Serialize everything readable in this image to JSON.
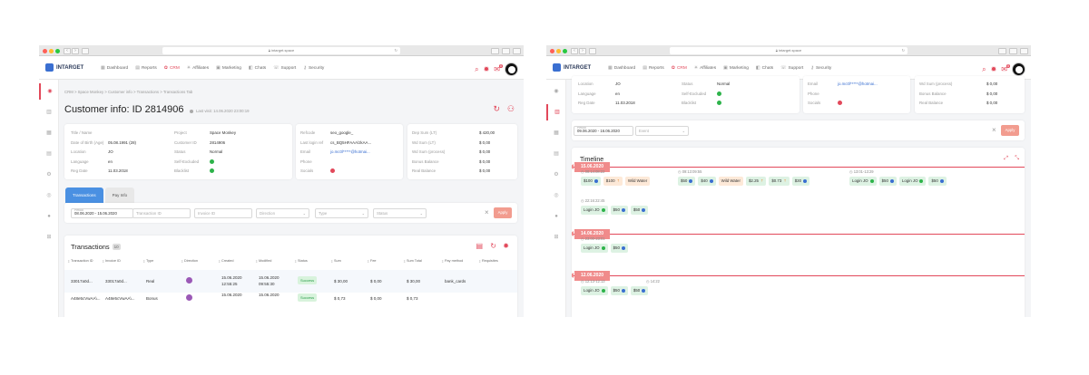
{
  "browser": {
    "url": "intarget.space"
  },
  "app": {
    "logo": "INTARGET"
  },
  "nav": [
    {
      "label": "Dashboard",
      "icon": "dashboard-icon",
      "glyph": "▦"
    },
    {
      "label": "Reports",
      "icon": "reports-icon",
      "glyph": "▤"
    },
    {
      "label": "CRM",
      "icon": "crm-icon",
      "glyph": "✿",
      "active": true
    },
    {
      "label": "Affiliates",
      "icon": "affiliates-icon",
      "glyph": "✳"
    },
    {
      "label": "Marketing",
      "icon": "marketing-icon",
      "glyph": "▣"
    },
    {
      "label": "Chats",
      "icon": "chats-icon",
      "glyph": "◧"
    },
    {
      "label": "Support",
      "icon": "support-icon",
      "glyph": "☏"
    },
    {
      "label": "Security",
      "icon": "security-icon",
      "glyph": "⚷"
    }
  ],
  "notifications": {
    "count": "8"
  },
  "left": {
    "breadcrumb": "CRM > Space Monkey > Customer info > Transactions > Transactions Tab",
    "title": "Customer info: ID 2814906",
    "last_visit": "Last visit: 14.06.2020 23:00:19",
    "info_col1": [
      {
        "k": "Title / Name",
        "v": ""
      },
      {
        "k": "Date of Birth (Age)",
        "v": "05.08.1991 (28)"
      },
      {
        "k": "Location",
        "v": "JO"
      },
      {
        "k": "Language",
        "v": "en"
      },
      {
        "k": "Reg Date",
        "v": "11.03.2018"
      }
    ],
    "info_col2": [
      {
        "k": "Project",
        "v": "Space Monkey"
      },
      {
        "k": "Customer ID",
        "v": "2814906"
      },
      {
        "k": "Status",
        "v": "Normal"
      },
      {
        "k": "Self-Excluded",
        "v": ""
      },
      {
        "k": "Blacklist",
        "v": ""
      }
    ],
    "info_col3": [
      {
        "k": "Refcode",
        "v": "seo_google_"
      },
      {
        "k": "Last login ref",
        "v": "cs_BQ5HFAAA\\zkAA..."
      },
      {
        "k": "Email",
        "v": "jo.mc0l*****@hotmai..."
      },
      {
        "k": "Phone",
        "v": ""
      },
      {
        "k": "Socials",
        "v": ""
      }
    ],
    "info_col4": [
      {
        "k": "Dep Sum (LT)",
        "v": "$ 420,00"
      },
      {
        "k": "Wd Sum (LT)",
        "v": "$ 0,00"
      },
      {
        "k": "Wd Sum (process)",
        "v": "$ 0,00"
      },
      {
        "k": "Bonus Balance",
        "v": "$ 0,00"
      },
      {
        "k": "Real Balance",
        "v": "$ 0,00"
      }
    ],
    "tabs": [
      "Transactions",
      "Pay Info"
    ],
    "filters": {
      "period_caption": "Period",
      "period": "08.06.2020 - 15.06.2020",
      "transaction_id": "Transaction ID",
      "invoice_id": "Invoice ID",
      "direction": "Direction",
      "type": "Type",
      "status": "Status",
      "apply": "Apply"
    },
    "transactions": {
      "title": "Transactions",
      "count": "10",
      "headers": [
        "Transaction ID",
        "Invoice ID",
        "Type",
        "Direction",
        "Created",
        "Modified",
        "Status",
        "Sum",
        "Fee",
        "Sum Total",
        "Pay method",
        "Requisites"
      ],
      "rows": [
        {
          "tid": "33017a0d...",
          "iid": "33017a0d...",
          "type": "Real",
          "created": "15.06.2020 12:55:25",
          "created_date": "15.06.2020",
          "created_time": "12:55:25",
          "modified_date": "15.06.2020",
          "modified_time": "09:55:30",
          "status": "Success",
          "sum": "$ 30,00",
          "fee": "$ 0,00",
          "total": "$ 30,00",
          "method": "bank_cards"
        },
        {
          "tid": "A48e5cVwAA\\...",
          "iid": "A48e5cVwAA\\...",
          "type": "Bonus",
          "created_date": "15.06.2020",
          "created_time": "",
          "modified_date": "15.06.2020",
          "modified_time": "",
          "status": "Success",
          "sum": "$ 0,73",
          "fee": "$ 0,00",
          "total": "$ 0,73",
          "method": ""
        }
      ]
    }
  },
  "right": {
    "info_col1": [
      {
        "k": "Location",
        "v": "JO"
      },
      {
        "k": "Language",
        "v": "en"
      },
      {
        "k": "Reg Date",
        "v": "11.03.2018"
      }
    ],
    "info_col2": [
      {
        "k": "Status",
        "v": "Normal"
      },
      {
        "k": "Self-Excluded",
        "v": ""
      },
      {
        "k": "Blacklist",
        "v": ""
      }
    ],
    "info_col3": [
      {
        "k": "Email",
        "v": "jo.mc0l*****@hotmai..."
      },
      {
        "k": "Phone",
        "v": ""
      },
      {
        "k": "Socials",
        "v": ""
      }
    ],
    "info_col4": [
      {
        "k": "Wd Sum (process)",
        "v": "$ 0,00"
      },
      {
        "k": "Bonus Balance",
        "v": "$ 0,00"
      },
      {
        "k": "Real Balance",
        "v": "$ 0,00"
      }
    ],
    "filters": {
      "period_caption": "Period",
      "period": "09.06.2020 - 16.06.2020",
      "event": "Event",
      "apply": "Apply"
    },
    "timeline": {
      "title": "Timeline",
      "days": [
        {
          "date": "15.06.2020",
          "groups": [
            {
              "time": "08:14:08:22",
              "chips": [
                {
                  "t": "$100",
                  "c": "g",
                  "i": "co"
                },
                {
                  "t": "$100",
                  "c": "o",
                  "i": "cy"
                },
                {
                  "t": "Wild Water",
                  "c": "o",
                  "i": ""
                }
              ]
            },
            {
              "time": "09:13:09:55",
              "chips": [
                {
                  "t": "$50",
                  "c": "g",
                  "i": "co"
                },
                {
                  "t": "$40",
                  "c": "g",
                  "i": "co"
                },
                {
                  "t": "Wild Water",
                  "c": "o",
                  "i": ""
                },
                {
                  "t": "$2.25",
                  "c": "g",
                  "i": "cy"
                },
                {
                  "t": "$0.73",
                  "c": "g",
                  "i": "cy"
                },
                {
                  "t": "$30",
                  "c": "g",
                  "i": "co"
                }
              ]
            },
            {
              "time": "13:01-13:29",
              "chips": [
                {
                  "t": "Login JO",
                  "c": "g",
                  "i": "cg"
                },
                {
                  "t": "$50",
                  "c": "g",
                  "i": "co"
                },
                {
                  "t": "Login JO",
                  "c": "g",
                  "i": "cg"
                },
                {
                  "t": "$50",
                  "c": "g",
                  "i": "co"
                }
              ]
            },
            {
              "time": "22:16:22:45",
              "chips": [
                {
                  "t": "Login JO",
                  "c": "g",
                  "i": "cg"
                },
                {
                  "t": "$50",
                  "c": "g",
                  "i": "co"
                },
                {
                  "t": "$50",
                  "c": "g",
                  "i": "co"
                }
              ]
            }
          ]
        },
        {
          "date": "14.06.2020",
          "groups": [
            {
              "time": "23:00-23:01",
              "chips": [
                {
                  "t": "Login JO",
                  "c": "g",
                  "i": "cg"
                },
                {
                  "t": "$50",
                  "c": "g",
                  "i": "co"
                }
              ]
            }
          ]
        },
        {
          "date": "12.06.2020",
          "groups": [
            {
              "time": "12:13-12:13",
              "chips": [
                {
                  "t": "Login JO",
                  "c": "g",
                  "i": "cg"
                },
                {
                  "t": "$50",
                  "c": "g",
                  "i": "co"
                },
                {
                  "t": "$50",
                  "c": "g",
                  "i": "co"
                }
              ]
            },
            {
              "time": "14:22",
              "chips": []
            }
          ]
        }
      ]
    }
  },
  "colors": {
    "accent": "#e2485a",
    "primary": "#3a6fd1",
    "tab_active": "#4a90e2"
  }
}
